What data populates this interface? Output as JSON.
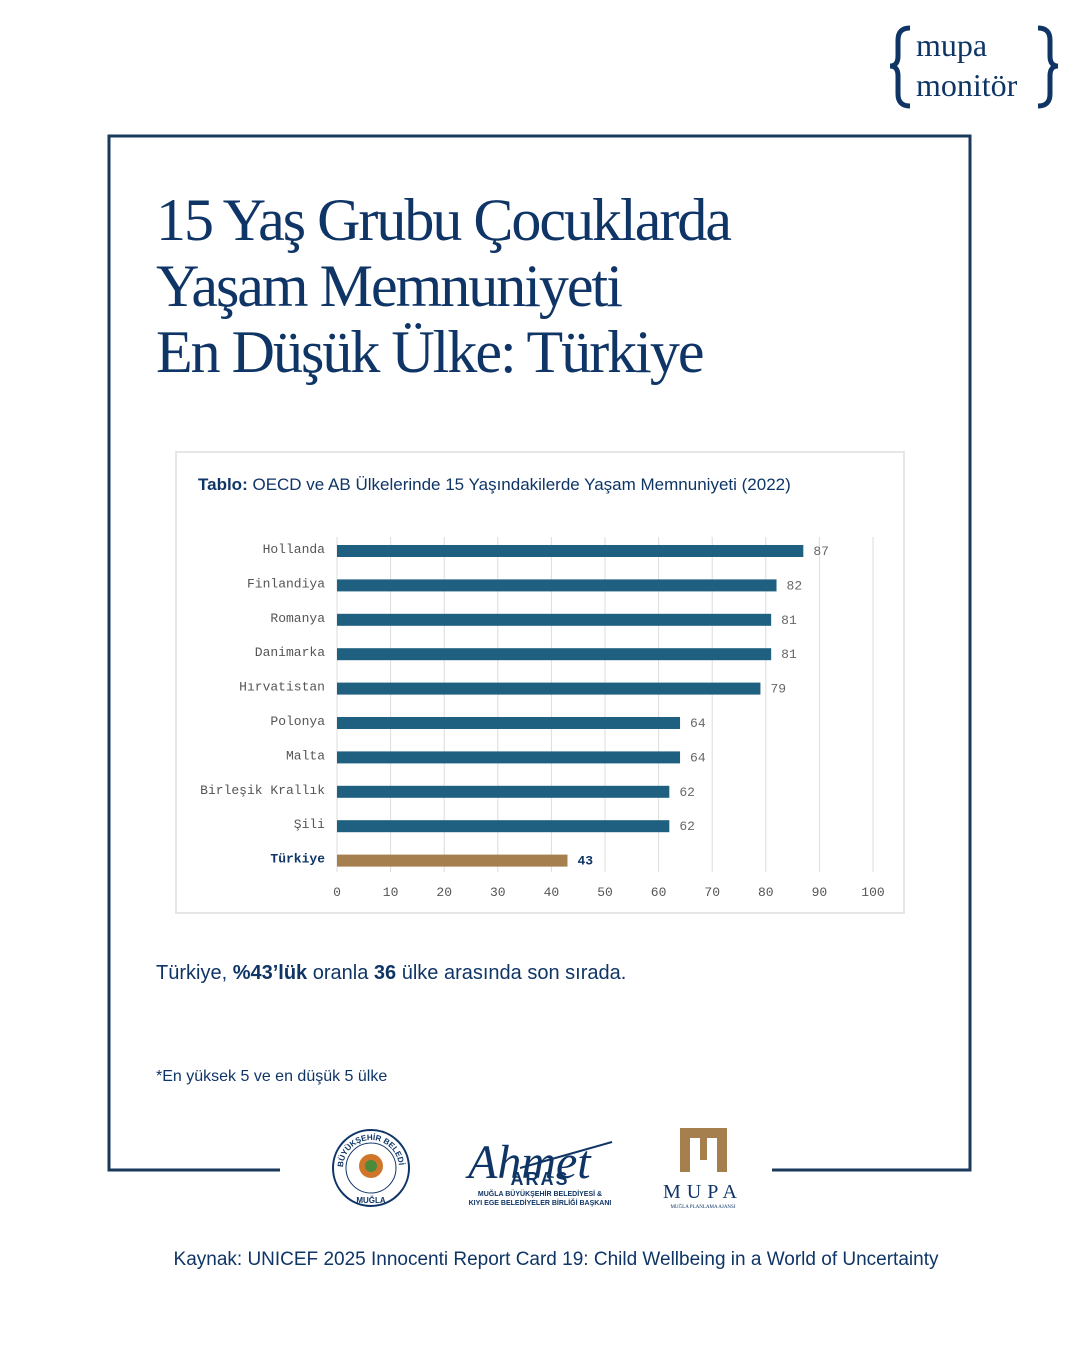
{
  "brand": {
    "line1": "mupa",
    "line2": "monitör"
  },
  "headline": [
    "15 Yaş Grubu Çocuklarda",
    "Yaşam Memnuniyeti",
    "En Düşük Ülke: Türkiye"
  ],
  "chart_data": {
    "type": "bar",
    "orientation": "horizontal",
    "title_prefix": "Tablo:",
    "title": "OECD ve AB Ülkelerinde 15 Yaşındakilerde Yaşam Memnuniyeti (2022)",
    "categories": [
      "Hollanda",
      "Finlandiya",
      "Romanya",
      "Danimarka",
      "Hırvatistan",
      "Polonya",
      "Malta",
      "Birleşik Krallık",
      "Şili",
      "Türkiye"
    ],
    "values": [
      87,
      82,
      81,
      81,
      79,
      64,
      64,
      62,
      62,
      43
    ],
    "colors": [
      "#1f5f80",
      "#1f5f80",
      "#1f5f80",
      "#1f5f80",
      "#1f5f80",
      "#1f5f80",
      "#1f5f80",
      "#1f5f80",
      "#1f5f80",
      "#a67f4e"
    ],
    "xlim": [
      0,
      100
    ],
    "xticks": [
      0,
      10,
      20,
      30,
      40,
      50,
      60,
      70,
      80,
      90,
      100
    ],
    "grid": true
  },
  "summary": [
    "Türkiye, ",
    "%43’lük",
    " oranla ",
    "36",
    " ülke arasında son sırada."
  ],
  "footnote": "*En yüksek 5 ve en düşük 5 ülke",
  "logos": {
    "municipality": {
      "top": "T.C. BÜYÜKŞEHİR BELEDİYESİ",
      "bottom": "MUĞLA"
    },
    "mayor": {
      "first": "Ahmet",
      "last": "ARAS",
      "role": [
        "MUĞLA BÜYÜKŞEHİR BELEDİYESİ &",
        "KIYI EGE BELEDİYELER BİRLİĞİ BAŞKANI"
      ]
    },
    "agency": {
      "name": "MUPA",
      "full": "MUĞLA PLANLAMA AJANSI"
    }
  },
  "source": "Kaynak: UNICEF 2025 Innocenti Report Card 19: Child Wellbeing in a World of Uncertainty"
}
